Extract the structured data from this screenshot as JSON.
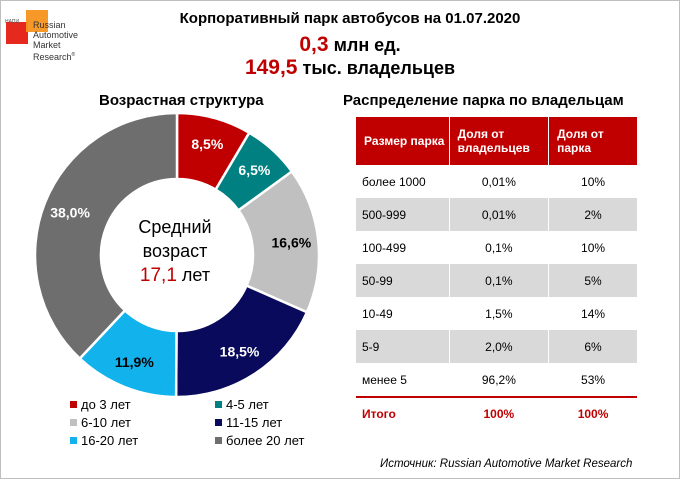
{
  "logo": {
    "small": "НАПИ",
    "lines": [
      "Russian",
      "Automotive",
      "Market",
      "Research"
    ],
    "reg": "®"
  },
  "header": {
    "title": "Корпоративный парк автобусов на 01.07.2020",
    "fleet_value": "0,3",
    "fleet_unit": " млн ед.",
    "owners_value": "149,5",
    "owners_unit": " тыс. владельцев"
  },
  "age_section_title": "Возрастная структура",
  "owners_section_title": "Распределение парка по владельцам",
  "center": {
    "line1": "Средний",
    "line2": "возраст",
    "age_value": "17,1",
    "age_unit": " лет"
  },
  "chart_data": [
    {
      "type": "pie",
      "title": "Возрастная структура",
      "donut": true,
      "categories": [
        "до 3 лет",
        "4-5 лет",
        "6-10 лет",
        "11-15 лет",
        "16-20 лет",
        "более 20 лет"
      ],
      "values": [
        8.5,
        6.5,
        16.6,
        18.5,
        11.9,
        38.0
      ],
      "labels": [
        "8,5%",
        "6,5%",
        "16,6%",
        "18,5%",
        "11,9%",
        "38,0%"
      ],
      "colors": [
        "#c00000",
        "#008080",
        "#c0c0c0",
        "#0a0a5c",
        "#12b2ec",
        "#6e6e6e"
      ],
      "label_colors": [
        "#ffffff",
        "#ffffff",
        "#000000",
        "#ffffff",
        "#000000",
        "#ffffff"
      ],
      "legend_position": "bottom"
    },
    {
      "type": "table",
      "title": "Распределение парка по владельцам",
      "columns": [
        "Размер парка",
        "Доля от владельцев",
        "Доля от парка"
      ],
      "rows": [
        [
          "более 1000",
          "0,01%",
          "10%"
        ],
        [
          "500-999",
          "0,01%",
          "2%"
        ],
        [
          "100-499",
          "0,1%",
          "10%"
        ],
        [
          "50-99",
          "0,1%",
          "5%"
        ],
        [
          "10-49",
          "1,5%",
          "14%"
        ],
        [
          "5-9",
          "2,0%",
          "6%"
        ],
        [
          "менее 5",
          "96,2%",
          "53%"
        ]
      ],
      "total": [
        "Итого",
        "100%",
        "100%"
      ]
    }
  ],
  "source": "Источник: Russian Automotive Market Research"
}
